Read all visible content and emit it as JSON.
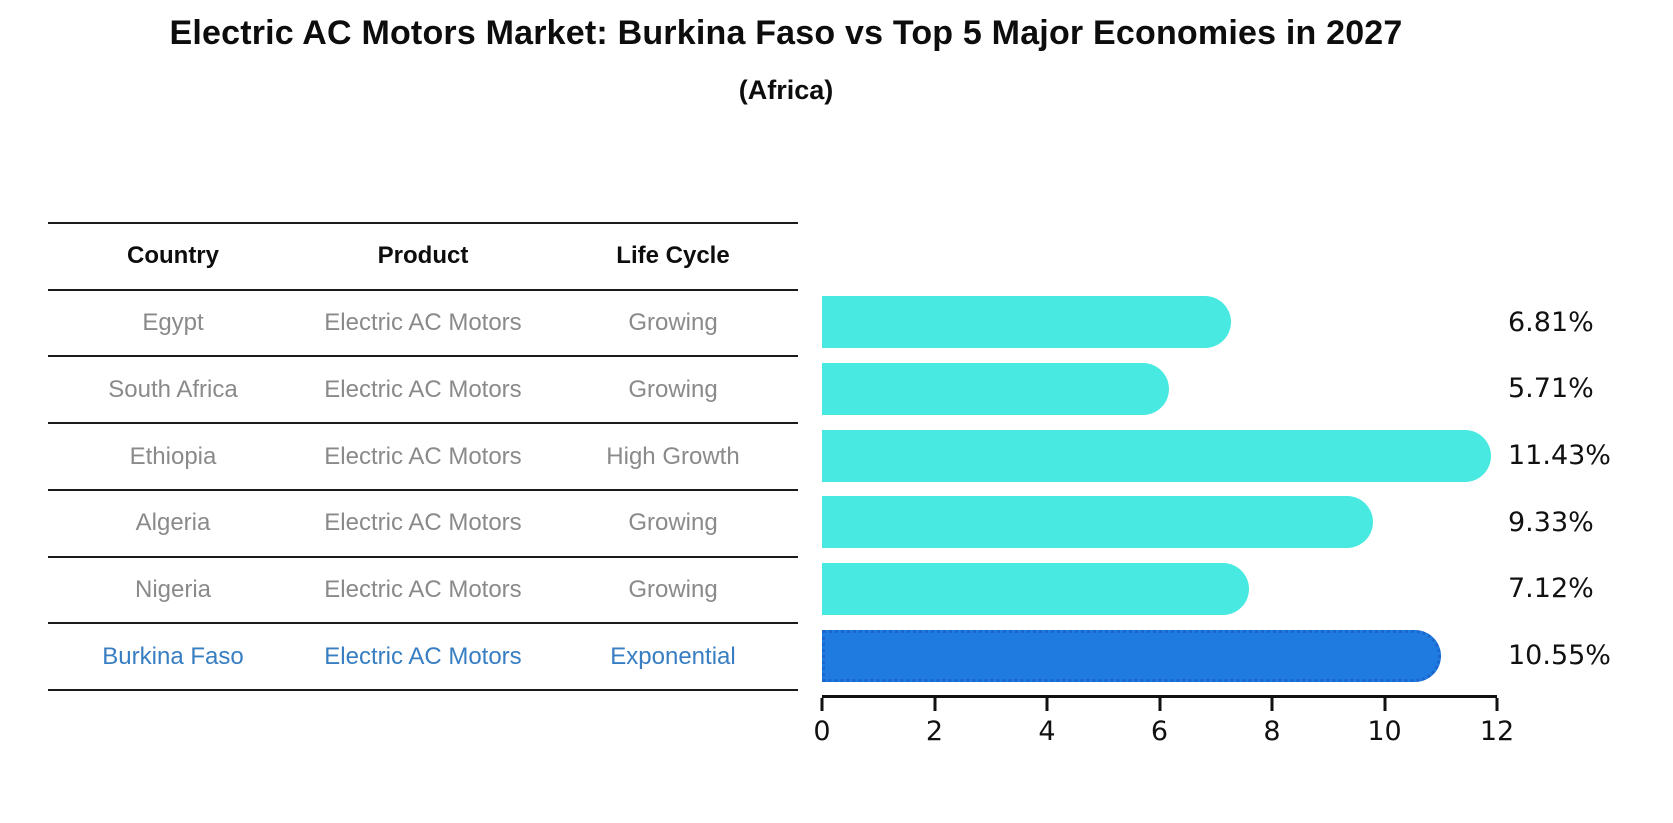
{
  "title": "Electric AC Motors Market: Burkina Faso vs Top 5 Major Economies in 2027",
  "subtitle": "(Africa)",
  "table": {
    "headers": [
      "Country",
      "Product",
      "Life Cycle"
    ],
    "rows": [
      {
        "country": "Egypt",
        "product": "Electric AC Motors",
        "life_cycle": "Growing",
        "highlight": false
      },
      {
        "country": "South Africa",
        "product": "Electric AC Motors",
        "life_cycle": "Growing",
        "highlight": false
      },
      {
        "country": "Ethiopia",
        "product": "Electric AC Motors",
        "life_cycle": "High Growth",
        "highlight": false
      },
      {
        "country": "Algeria",
        "product": "Electric AC Motors",
        "life_cycle": "Growing",
        "highlight": false
      },
      {
        "country": "Nigeria",
        "product": "Electric AC Motors",
        "life_cycle": "Growing",
        "highlight": false
      },
      {
        "country": "Burkina Faso",
        "product": "Electric AC Motors",
        "life_cycle": "Exponential",
        "highlight": true
      }
    ]
  },
  "chart_data": {
    "type": "bar",
    "orientation": "horizontal",
    "title": "Electric AC Motors Market: Burkina Faso vs Top 5 Major Economies in 2027",
    "subtitle": "(Africa)",
    "categories": [
      "Egypt",
      "South Africa",
      "Ethiopia",
      "Algeria",
      "Nigeria",
      "Burkina Faso"
    ],
    "values": [
      6.81,
      5.71,
      11.43,
      9.33,
      7.12,
      10.55
    ],
    "value_labels": [
      "6.81%",
      "5.71%",
      "11.43%",
      "9.33%",
      "7.12%",
      "10.55%"
    ],
    "xlabel": "",
    "ylabel": "",
    "xlim": [
      0,
      12
    ],
    "xticks": [
      0,
      2,
      4,
      6,
      8,
      10,
      12
    ],
    "grid": false,
    "legend": false,
    "bar_color": "#48e9e1",
    "highlight_color": "#1f7be0",
    "highlight_index": 5
  },
  "colors": {
    "text_default": "#8a8a8a",
    "text_header": "#0d0d0d",
    "text_highlight": "#377ec2",
    "axis": "#111111"
  }
}
